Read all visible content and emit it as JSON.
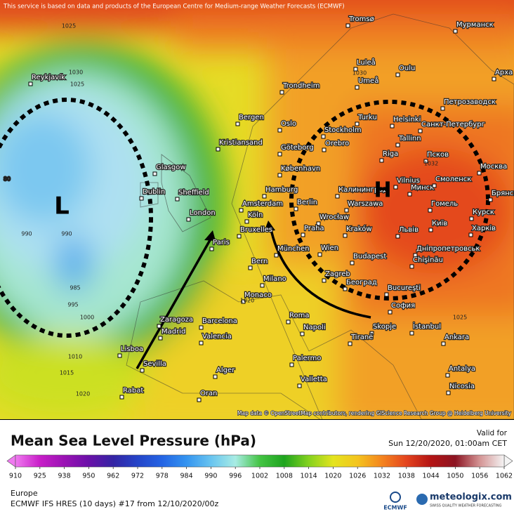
{
  "header": {
    "notice": "This service is based on data and products of the European Centre for Medium-range Weather Forecasts (ECMWF)"
  },
  "map": {
    "low_label": "L",
    "high_label": "H",
    "cities": [
      "Reykjavík",
      "Tromsø",
      "Мурманск",
      "Luleå",
      "Oulu",
      "Umeå",
      "Арха",
      "Trondheim",
      "Петрозаводск",
      "Bergen",
      "Turku",
      "Helsinki",
      "Санкт-Петербург",
      "Oslo",
      "Stockholm",
      "Tallinn",
      "Orebro",
      "Kristiansand",
      "Göteborg",
      "Riga",
      "Псков",
      "Glasgow",
      "København",
      "Vilnius",
      "Минск",
      "Смоленск",
      "Москва",
      "Dublin",
      "Sheffield",
      "Hamburg",
      "Калининград",
      "Брянск",
      "Berlin",
      "Warszawa",
      "Гомель",
      "Amsterdam",
      "London",
      "Wrocław",
      "Курск",
      "Köln",
      "Bruxelles",
      "Praha",
      "Kraków",
      "Львів",
      "Київ",
      "Харків",
      "Paris",
      "München",
      "Wien",
      "Дніпропетровськ",
      "Budapest",
      "Chişinău",
      "Bern",
      "Zagreb",
      "Београд",
      "Bucureşti",
      "Milano",
      "Monaco",
      "Roma",
      "София",
      "Madrid",
      "Barcelona",
      "Napoli",
      "Skopje",
      "İstanbul",
      "Zaragoza",
      "Valencia",
      "Tiranë",
      "Ankara",
      "Lisboa",
      "Sevilla",
      "Palermo",
      "Antalya",
      "Alger",
      "Valletta",
      "Nicosia",
      "Rabat",
      "Oran"
    ],
    "isobar_labels": [
      "1025",
      "1030",
      "1030",
      "1025",
      "990",
      "990",
      "985",
      "995",
      "1000",
      "1010",
      "1015",
      "1020",
      "1020",
      "1025",
      "1032",
      "80"
    ],
    "attribution": "Map data © OpenStreetMap contributors, rendering GIScience Research Group @ Heidelberg University"
  },
  "footer": {
    "title": "Mean Sea Level Pressure (hPa)",
    "valid_label": "Valid for",
    "valid_time": "Sun 12/20/2020, 01:00am CET",
    "colorbar": {
      "ticks": [
        910,
        925,
        938,
        950,
        962,
        972,
        978,
        984,
        990,
        996,
        1002,
        1008,
        1014,
        1020,
        1026,
        1032,
        1038,
        1044,
        1050,
        1056,
        1062
      ],
      "colors": [
        "#f07af0",
        "#c81ec8",
        "#9a12b4",
        "#6a10a8",
        "#3424a4",
        "#2444c8",
        "#2464e4",
        "#3494f0",
        "#68c4f0",
        "#a8ece4",
        "#44c444",
        "#1ea41e",
        "#84d21e",
        "#e4e41e",
        "#f4c41e",
        "#f4841e",
        "#e4441e",
        "#b41414",
        "#8c1422",
        "#d49494",
        "#f4f4f4"
      ]
    },
    "region": "Europe",
    "model": "ECMWF IFS HRES (10 days) #17 from 12/10/2020/00z",
    "ecmwf_logo": "ECMWF",
    "brand": "meteologix.com",
    "brand_tagline": "SWISS QUALITY WEATHER FORECASTING"
  }
}
